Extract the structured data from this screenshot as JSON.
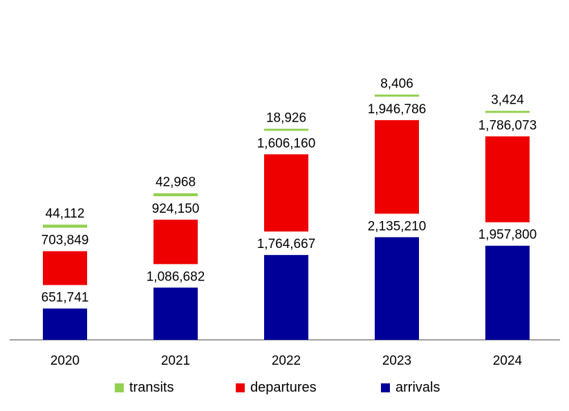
{
  "chart_data": {
    "type": "bar",
    "stacked": true,
    "categories": [
      "2020",
      "2021",
      "2022",
      "2023",
      "2024"
    ],
    "series": [
      {
        "name": "arrivals",
        "color": "#000099",
        "values": [
          651741,
          1086682,
          1764667,
          2135210,
          1957800
        ]
      },
      {
        "name": "departures",
        "color": "#ee0000",
        "values": [
          703849,
          924150,
          1606160,
          1946786,
          1786073
        ]
      },
      {
        "name": "transits",
        "color": "#92d050",
        "values": [
          44112,
          42968,
          18926,
          8406,
          3424
        ]
      }
    ],
    "labels": {
      "arrivals": [
        "651,741",
        "1,086,682",
        "1,764,667",
        "2,135,210",
        "1,957,800"
      ],
      "departures": [
        "703,849",
        "924,150",
        "1,606,160",
        "1,946,786",
        "1,786,073"
      ],
      "transits": [
        "44,112",
        "42,968",
        "18,926",
        "8,406",
        "3,424"
      ]
    },
    "legend_position": "bottom",
    "grid": false
  },
  "legend": [
    {
      "name": "transits",
      "color": "#92d050"
    },
    {
      "name": "departures",
      "color": "#ee0000"
    },
    {
      "name": "arrivals",
      "color": "#000099"
    }
  ]
}
